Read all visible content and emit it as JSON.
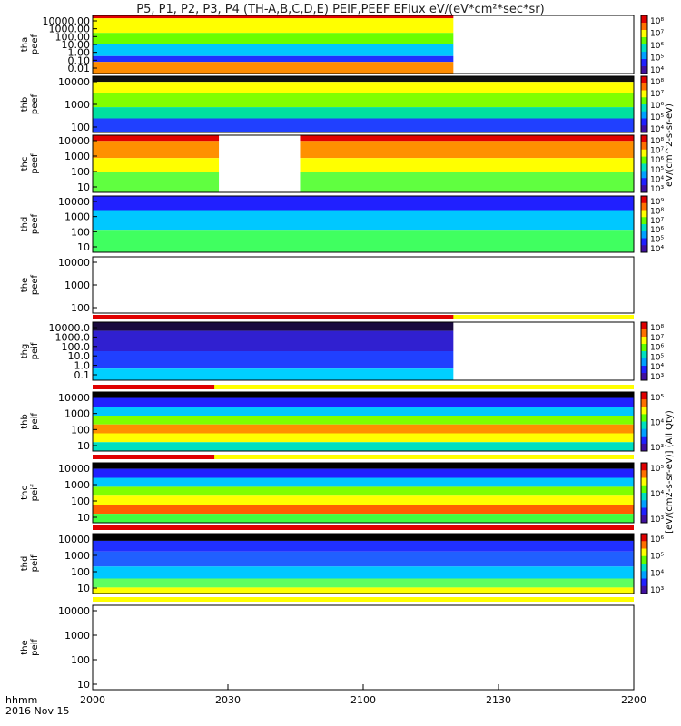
{
  "title": "P5, P1, P2, P3, P4 (TH-A,B,C,D,E) PEIF,PEEF EFlux eV/(eV*cm²*sec*sr)",
  "time_axis": {
    "ticks": [
      "2000",
      "2030",
      "2100",
      "2130",
      "2200"
    ],
    "label_top": "hhmm",
    "label_bottom": "2016 Nov 15"
  },
  "chart_data": {
    "type": "heatmap",
    "x_range_min": [
      0,
      120
    ],
    "panels": [
      {
        "label": "tha peef",
        "yticks": [
          "10000.00",
          "1000.00",
          "100.00",
          "10.00",
          "1.00",
          "0.10",
          "0.01"
        ],
        "cbar_ticks": [
          "10⁸",
          "10⁷",
          "10⁶",
          "10⁵",
          "10⁴"
        ],
        "data_end_min": 80,
        "bands": [
          {
            "lo": 0.95,
            "c": "#e00000"
          },
          {
            "lo": 0.7,
            "c": "#ffff00"
          },
          {
            "lo": 0.5,
            "c": "#6aff00"
          },
          {
            "lo": 0.3,
            "c": "#00c8ff"
          },
          {
            "lo": 0.2,
            "c": "#2030ff"
          },
          {
            "lo": 0.0,
            "c": "#ff8c00"
          }
        ]
      },
      {
        "label": "thb peef",
        "yticks": [
          "10000",
          "1000",
          "100"
        ],
        "cbar_ticks": [
          "10⁸",
          "10⁷",
          "10⁶",
          "10⁵",
          "10⁴"
        ],
        "data_end_min": 120,
        "bands": [
          {
            "lo": 0.9,
            "c": "#101010"
          },
          {
            "lo": 0.7,
            "c": "#ffff00"
          },
          {
            "lo": 0.45,
            "c": "#80ff00"
          },
          {
            "lo": 0.25,
            "c": "#00e0a0"
          },
          {
            "lo": 0.0,
            "c": "#2040ff"
          }
        ]
      },
      {
        "label": "thc peef",
        "yticks": [
          "10000",
          "1000",
          "100",
          "10"
        ],
        "cbar_ticks": [
          "10⁸",
          "10⁷",
          "10⁶",
          "10⁵",
          "10⁴",
          "10³"
        ],
        "data_end_min": 120,
        "gap_min": [
          28,
          46
        ],
        "bands": [
          {
            "lo": 0.9,
            "c": "#e00000"
          },
          {
            "lo": 0.6,
            "c": "#ff9000"
          },
          {
            "lo": 0.35,
            "c": "#ffff00"
          },
          {
            "lo": 0.0,
            "c": "#60ff40"
          }
        ]
      },
      {
        "label": "thd peef",
        "yticks": [
          "10000",
          "1000",
          "100",
          "10"
        ],
        "cbar_ticks": [
          "10⁹",
          "10⁸",
          "10⁷",
          "10⁶",
          "10⁵",
          "10⁴"
        ],
        "data_end_min": 120,
        "bands": [
          {
            "lo": 0.75,
            "c": "#2020ff"
          },
          {
            "lo": 0.4,
            "c": "#00c8ff"
          },
          {
            "lo": 0.0,
            "c": "#40ff60"
          }
        ]
      },
      {
        "label": "the peef",
        "yticks": [
          "10000",
          "1000",
          "100"
        ],
        "cbar_ticks": [],
        "data_end_min": 0,
        "bands": []
      },
      {
        "label": "thg peif",
        "yticks": [
          "10000.0",
          "1000.0",
          "100.0",
          "10.0",
          "1.0",
          "0.1"
        ],
        "cbar_ticks": [
          "10⁸",
          "10⁷",
          "10⁶",
          "10⁵",
          "10⁴",
          "10³"
        ],
        "data_end_min": 80,
        "bands": [
          {
            "lo": 0.85,
            "c": "#1a0a40"
          },
          {
            "lo": 0.5,
            "c": "#3020d0"
          },
          {
            "lo": 0.2,
            "c": "#2040ff"
          },
          {
            "lo": 0.0,
            "c": "#00d0ff"
          }
        ]
      },
      {
        "label": "thb peif",
        "yticks": [
          "10000",
          "1000",
          "100",
          "10"
        ],
        "cbar_ticks": [
          "10⁵",
          "10⁴",
          "10³"
        ],
        "data_end_min": 120,
        "bands": [
          {
            "lo": 0.9,
            "c": "#000000"
          },
          {
            "lo": 0.75,
            "c": "#2020ff"
          },
          {
            "lo": 0.6,
            "c": "#00c8ff"
          },
          {
            "lo": 0.45,
            "c": "#80ff00"
          },
          {
            "lo": 0.3,
            "c": "#ff9000"
          },
          {
            "lo": 0.15,
            "c": "#ffff00"
          },
          {
            "lo": 0.0,
            "c": "#00e0c0"
          }
        ]
      },
      {
        "label": "thc peif",
        "yticks": [
          "10000",
          "1000",
          "100",
          "10"
        ],
        "cbar_ticks": [
          "10⁵",
          "10⁴",
          "10³"
        ],
        "data_end_min": 120,
        "bands": [
          {
            "lo": 0.9,
            "c": "#000000"
          },
          {
            "lo": 0.75,
            "c": "#2020ff"
          },
          {
            "lo": 0.6,
            "c": "#00c8ff"
          },
          {
            "lo": 0.45,
            "c": "#80ff00"
          },
          {
            "lo": 0.3,
            "c": "#ffff00"
          },
          {
            "lo": 0.15,
            "c": "#ff6000"
          },
          {
            "lo": 0.0,
            "c": "#40ff40"
          }
        ]
      },
      {
        "label": "thd peif",
        "yticks": [
          "10000",
          "1000",
          "100",
          "10"
        ],
        "cbar_ticks": [
          "10⁶",
          "10⁵",
          "10⁴",
          "10³"
        ],
        "data_end_min": 120,
        "bands": [
          {
            "lo": 0.88,
            "c": "#000000"
          },
          {
            "lo": 0.7,
            "c": "#2030ff"
          },
          {
            "lo": 0.45,
            "c": "#2060ff"
          },
          {
            "lo": 0.25,
            "c": "#00c8ff"
          },
          {
            "lo": 0.1,
            "c": "#60ff60"
          },
          {
            "lo": 0.0,
            "c": "#ffff00"
          }
        ]
      },
      {
        "label": "the peif",
        "yticks": [
          "10000",
          "1000",
          "100",
          "10"
        ],
        "cbar_ticks": [],
        "data_end_min": 0,
        "bands": []
      }
    ],
    "mode_bars": [
      {
        "after_panel": 4,
        "red_end_min": 80
      },
      {
        "after_panel": 5,
        "red_end_min": 27
      },
      {
        "after_panel": 6,
        "red_end_min": 27
      },
      {
        "after_panel": 7,
        "red_end_min": 120
      },
      {
        "after_panel": 8,
        "red_end_min": 0
      }
    ],
    "colorbar_labels": [
      "eV/(cm^2-s-sr-eV)",
      "[eV/(cm2-s-sr-eV)] (All Qty)"
    ]
  }
}
